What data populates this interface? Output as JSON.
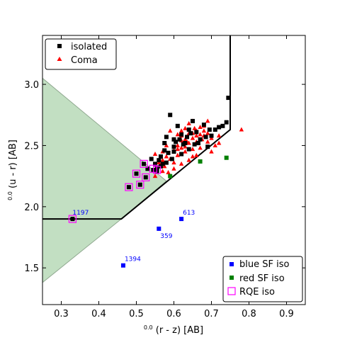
{
  "chart_data": {
    "type": "scatter",
    "xlabel_sup": "0.0",
    "xlabel": "(r - z) [AB]",
    "ylabel_sup": "0.0",
    "ylabel": "(u - r) [AB]",
    "xlim": [
      0.25,
      0.95
    ],
    "ylim": [
      1.2,
      3.4
    ],
    "xticks": [
      "0.3",
      "0.4",
      "0.5",
      "0.6",
      "0.7",
      "0.8",
      "0.9"
    ],
    "yticks": [
      "1.5",
      "2.0",
      "2.5",
      "3.0"
    ],
    "colors": {
      "isolated": "#000000",
      "coma": "#ff0000",
      "blue_sf": "#0000ff",
      "red_sf": "#008000",
      "rqe": "#ff00ff",
      "green_region": "#c2dfc2"
    },
    "green_region": [
      [
        0.25,
        3.05
      ],
      [
        0.25,
        1.38
      ],
      [
        0.46,
        1.9
      ],
      [
        0.58,
        2.21
      ]
    ],
    "boundary_line": [
      [
        0.25,
        1.9
      ],
      [
        0.46,
        1.9
      ],
      [
        0.75,
        2.63
      ],
      [
        0.75,
        3.4
      ]
    ],
    "series": [
      {
        "name": "isolated",
        "marker": "square",
        "points": [
          [
            0.745,
            2.89
          ],
          [
            0.74,
            2.69
          ],
          [
            0.59,
            2.75
          ],
          [
            0.58,
            2.57
          ],
          [
            0.6,
            2.55
          ],
          [
            0.61,
            2.66
          ],
          [
            0.62,
            2.59
          ],
          [
            0.63,
            2.52
          ],
          [
            0.64,
            2.63
          ],
          [
            0.65,
            2.7
          ],
          [
            0.66,
            2.61
          ],
          [
            0.67,
            2.55
          ],
          [
            0.68,
            2.67
          ],
          [
            0.69,
            2.49
          ],
          [
            0.7,
            2.58
          ],
          [
            0.71,
            2.63
          ],
          [
            0.72,
            2.65
          ],
          [
            0.73,
            2.66
          ],
          [
            0.64,
            2.47
          ],
          [
            0.62,
            2.43
          ],
          [
            0.6,
            2.45
          ],
          [
            0.58,
            2.36
          ],
          [
            0.57,
            2.35
          ],
          [
            0.56,
            2.38
          ],
          [
            0.575,
            2.46
          ],
          [
            0.555,
            2.32
          ],
          [
            0.6,
            2.49
          ],
          [
            0.615,
            2.55
          ],
          [
            0.635,
            2.57
          ],
          [
            0.655,
            2.51
          ],
          [
            0.53,
            2.31
          ],
          [
            0.54,
            2.39
          ],
          [
            0.55,
            2.35
          ],
          [
            0.565,
            2.33
          ],
          [
            0.5,
            2.27
          ],
          [
            0.52,
            2.35
          ],
          [
            0.51,
            2.18
          ],
          [
            0.48,
            2.16
          ],
          [
            0.525,
            2.24
          ],
          [
            0.545,
            2.3
          ],
          [
            0.555,
            2.29
          ],
          [
            0.33,
            1.9
          ],
          [
            0.595,
            2.39
          ],
          [
            0.605,
            2.53
          ],
          [
            0.625,
            2.51
          ],
          [
            0.645,
            2.6
          ],
          [
            0.665,
            2.52
          ],
          [
            0.685,
            2.57
          ],
          [
            0.695,
            2.63
          ],
          [
            0.575,
            2.52
          ],
          [
            0.585,
            2.44
          ],
          [
            0.565,
            2.41
          ]
        ]
      },
      {
        "name": "Coma",
        "marker": "triangle",
        "points": [
          [
            0.78,
            2.63
          ],
          [
            0.6,
            2.55
          ],
          [
            0.61,
            2.5
          ],
          [
            0.62,
            2.62
          ],
          [
            0.63,
            2.55
          ],
          [
            0.64,
            2.68
          ],
          [
            0.65,
            2.6
          ],
          [
            0.66,
            2.53
          ],
          [
            0.67,
            2.59
          ],
          [
            0.68,
            2.66
          ],
          [
            0.69,
            2.6
          ],
          [
            0.7,
            2.56
          ],
          [
            0.71,
            2.5
          ],
          [
            0.72,
            2.52
          ],
          [
            0.6,
            2.46
          ],
          [
            0.61,
            2.42
          ],
          [
            0.62,
            2.48
          ],
          [
            0.63,
            2.45
          ],
          [
            0.64,
            2.52
          ],
          [
            0.65,
            2.7
          ],
          [
            0.66,
            2.62
          ],
          [
            0.67,
            2.65
          ],
          [
            0.68,
            2.58
          ],
          [
            0.69,
            2.53
          ],
          [
            0.59,
            2.39
          ],
          [
            0.58,
            2.41
          ],
          [
            0.57,
            2.38
          ],
          [
            0.56,
            2.36
          ],
          [
            0.6,
            2.36
          ],
          [
            0.62,
            2.35
          ],
          [
            0.64,
            2.38
          ],
          [
            0.66,
            2.42
          ],
          [
            0.55,
            2.43
          ],
          [
            0.61,
            2.59
          ],
          [
            0.63,
            2.64
          ],
          [
            0.65,
            2.56
          ],
          [
            0.67,
            2.48
          ],
          [
            0.7,
            2.45
          ],
          [
            0.58,
            2.5
          ],
          [
            0.59,
            2.62
          ],
          [
            0.62,
            2.58
          ],
          [
            0.64,
            2.6
          ],
          [
            0.66,
            2.58
          ],
          [
            0.68,
            2.62
          ],
          [
            0.69,
            2.7
          ],
          [
            0.63,
            2.49
          ],
          [
            0.65,
            2.47
          ],
          [
            0.61,
            2.47
          ],
          [
            0.57,
            2.45
          ],
          [
            0.575,
            2.33
          ],
          [
            0.585,
            2.28
          ],
          [
            0.55,
            2.25
          ],
          [
            0.57,
            2.29
          ],
          [
            0.6,
            2.31
          ],
          [
            0.65,
            2.41
          ],
          [
            0.72,
            2.58
          ],
          [
            0.62,
            2.54
          ],
          [
            0.635,
            2.53
          ],
          [
            0.655,
            2.64
          ],
          [
            0.675,
            2.55
          ]
        ]
      },
      {
        "name": "blue SF iso",
        "marker": "square",
        "points": [
          [
            0.465,
            1.52
          ],
          [
            0.56,
            1.82
          ],
          [
            0.62,
            1.9
          ]
        ],
        "labels": [
          "1394",
          "359",
          "613"
        ]
      },
      {
        "name": "red SF iso",
        "marker": "square",
        "points": [
          [
            0.74,
            2.4
          ],
          [
            0.67,
            2.37
          ],
          [
            0.59,
            2.25
          ]
        ]
      },
      {
        "name": "RQE iso",
        "marker": "open-square",
        "points": [
          [
            0.33,
            1.9
          ],
          [
            0.48,
            2.16
          ],
          [
            0.5,
            2.27
          ],
          [
            0.51,
            2.18
          ],
          [
            0.52,
            2.35
          ],
          [
            0.525,
            2.24
          ],
          [
            0.545,
            2.31
          ],
          [
            0.555,
            2.3
          ]
        ],
        "labels": [
          "1197",
          "",
          "",
          "",
          "",
          "",
          "",
          ""
        ]
      }
    ],
    "legend_top": {
      "placement": "top-left",
      "items": [
        "isolated",
        "Coma"
      ]
    },
    "legend_bottom": {
      "placement": "bottom-right",
      "items": [
        "blue SF iso",
        "red SF iso",
        "RQE iso"
      ]
    }
  }
}
